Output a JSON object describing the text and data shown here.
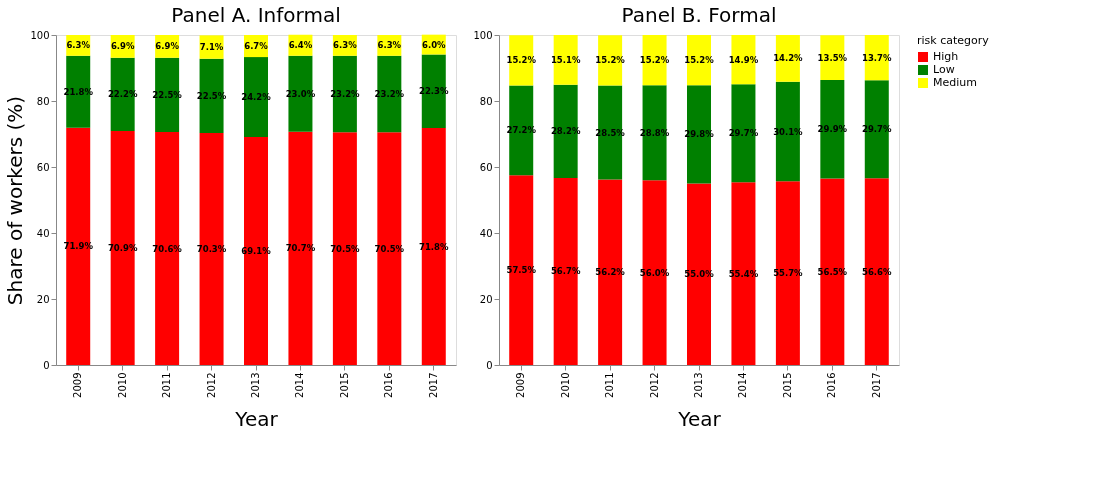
{
  "chart_data": [
    {
      "type": "bar",
      "title": "Panel A. Informal",
      "xlabel": "Year",
      "ylabel": "Share of workers  (%)",
      "stacked": true,
      "categories": [
        "2009",
        "2010",
        "2011",
        "2012",
        "2013",
        "2014",
        "2015",
        "2016",
        "2017"
      ],
      "ylim": [
        0,
        100
      ],
      "yticks": [
        0,
        20,
        40,
        60,
        80,
        100
      ],
      "legend": false,
      "grid": false,
      "series": [
        {
          "color": "#ff0000",
          "values": [
            71.9,
            70.9,
            70.6,
            70.3,
            69.1,
            70.7,
            70.5,
            70.5,
            71.8
          ],
          "value_labels": [
            "71.9%",
            "70.9%",
            "70.6%",
            "70.3%",
            "69.1%",
            "70.7%",
            "70.5%",
            "70.5%",
            "71.8%"
          ]
        },
        {
          "color": "#008000",
          "values": [
            21.8,
            22.2,
            22.5,
            22.5,
            24.2,
            23.0,
            23.2,
            23.2,
            22.3
          ],
          "value_labels": [
            "21.8%",
            "22.2%",
            "22.5%",
            "22.5%",
            "24.2%",
            "23.0%",
            "23.2%",
            "23.2%",
            "22.3%"
          ]
        },
        {
          "color": "#ffff00",
          "values": [
            6.3,
            6.9,
            6.9,
            7.1,
            6.7,
            6.4,
            6.3,
            6.3,
            6.0
          ],
          "value_labels": [
            "6.3%",
            "6.9%",
            "6.9%",
            "7.1%",
            "6.7%",
            "6.4%",
            "6.3%",
            "6.3%",
            "6.0%"
          ]
        }
      ]
    },
    {
      "type": "bar",
      "title": "Panel B. Formal",
      "xlabel": "Year",
      "stacked": true,
      "categories": [
        "2009",
        "2010",
        "2011",
        "2012",
        "2013",
        "2014",
        "2015",
        "2016",
        "2017"
      ],
      "ylim": [
        0,
        100
      ],
      "yticks": [
        0,
        20,
        40,
        60,
        80,
        100
      ],
      "legend": "right",
      "legend_title": "risk category",
      "grid": false,
      "series": [
        {
          "name": "High",
          "color": "#ff0000",
          "values": [
            57.5,
            56.7,
            56.2,
            56.0,
            55.0,
            55.4,
            55.7,
            56.5,
            56.6
          ],
          "value_labels": [
            "57.5%",
            "56.7%",
            "56.2%",
            "56.0%",
            "55.0%",
            "55.4%",
            "55.7%",
            "56.5%",
            "56.6%"
          ]
        },
        {
          "name": "Low",
          "color": "#008000",
          "values": [
            27.2,
            28.2,
            28.5,
            28.8,
            29.8,
            29.7,
            30.1,
            29.9,
            29.7
          ],
          "value_labels": [
            "27.2%",
            "28.2%",
            "28.5%",
            "28.8%",
            "29.8%",
            "29.7%",
            "30.1%",
            "29.9%",
            "29.7%"
          ]
        },
        {
          "name": "Medium",
          "color": "#ffff00",
          "values": [
            15.2,
            15.1,
            15.2,
            15.2,
            15.2,
            14.9,
            14.2,
            13.5,
            13.7
          ],
          "value_labels": [
            "15.2%",
            "15.1%",
            "15.2%",
            "15.2%",
            "15.2%",
            "14.9%",
            "14.2%",
            "13.5%",
            "13.7%"
          ]
        }
      ]
    }
  ]
}
